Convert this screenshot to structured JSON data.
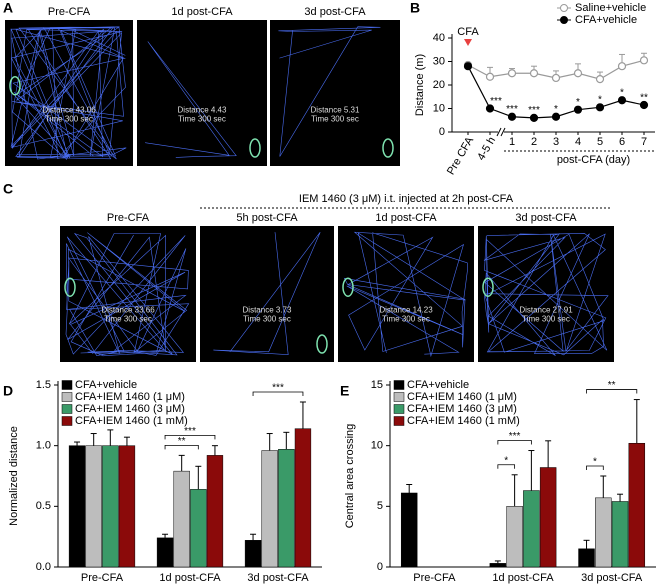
{
  "track_panels": [
    {
      "panel": "A",
      "images": [
        {
          "title": "Pre-CFA",
          "distance": "Distance 43.06",
          "time": "Time 300 sec"
        },
        {
          "title": "1d post-CFA",
          "distance": "Distance 4.43",
          "time": "Time 300 sec"
        },
        {
          "title": "3d post-CFA",
          "distance": "Distance 5.31",
          "time": "Time 300 sec"
        }
      ]
    },
    {
      "panel": "C",
      "header": "IEM 1460 (3 μM) i.t. injected at 2h post-CFA",
      "images": [
        {
          "title": "Pre-CFA",
          "distance": "Distance 33.66",
          "time": "Time 300 sec"
        },
        {
          "title": "5h post-CFA",
          "distance": "Distance 3.73",
          "time": "Time 300 sec"
        },
        {
          "title": "1d post-CFA",
          "distance": "Distance 14.23",
          "time": "Time 300 sec"
        },
        {
          "title": "3d post-CFA",
          "distance": "Distance 27.91",
          "time": "Time 300 sec"
        }
      ]
    }
  ],
  "chart_data": [
    {
      "type": "line",
      "panel": "B",
      "ylabel": "Distance (m)",
      "categories": [
        "Pre CFA",
        "4-5 h",
        "1",
        "2",
        "3",
        "4",
        "5",
        "6",
        "7"
      ],
      "x_group_label": "post-CFA (day)",
      "annotation": "CFA",
      "ylim": [
        0,
        40
      ],
      "yticks": [
        0,
        10,
        20,
        30,
        40
      ],
      "series": [
        {
          "name": "Saline+vehicle",
          "color": "#9a9a9a",
          "values": [
            28.5,
            23.5,
            25,
            25,
            23,
            25,
            22.5,
            28,
            30.5
          ],
          "errors": [
            1,
            4,
            2,
            3,
            3,
            4,
            3,
            5,
            3
          ]
        },
        {
          "name": "CFA+vehicle",
          "color": "#000000",
          "values": [
            28,
            10,
            6.5,
            6,
            6.5,
            9.5,
            10.5,
            13.5,
            11.5
          ],
          "errors": [
            1,
            1,
            1,
            1,
            1,
            1,
            1,
            1,
            1
          ]
        }
      ],
      "significance": [
        null,
        "***",
        "***",
        "***",
        "*",
        "*",
        "*",
        "*",
        "**"
      ],
      "legend": "upper right"
    },
    {
      "type": "bar",
      "panel": "D",
      "ylabel": "Normalized distance",
      "categories": [
        "Pre-CFA",
        "1d post-CFA",
        "3d post-CFA"
      ],
      "ylim": [
        0,
        1.5
      ],
      "yticks": [
        {
          "value": 0,
          "label": "0.0"
        },
        0.5,
        {
          "value": 1,
          "label": "1.0"
        },
        1.5
      ],
      "series": [
        {
          "name": "CFA+vehicle",
          "color": "#000000",
          "values": [
            1.0,
            0.24,
            0.22
          ],
          "errors": [
            0.03,
            0.03,
            0.05
          ]
        },
        {
          "name": "CFA+IEM 1460 (1 μM)",
          "color": "#bdbdbd",
          "values": [
            1.0,
            0.79,
            0.96
          ],
          "errors": [
            0.1,
            0.13,
            0.14
          ]
        },
        {
          "name": "CFA+IEM 1460 (3 μM)",
          "color": "#3a9a68",
          "values": [
            1.0,
            0.64,
            0.97
          ],
          "errors": [
            0.13,
            0.19,
            0.14
          ]
        },
        {
          "name": "CFA+IEM 1460 (1 mM)",
          "color": "#8b0a0a",
          "values": [
            1.0,
            0.92,
            1.14
          ],
          "errors": [
            0.07,
            0.08,
            0.22
          ]
        }
      ],
      "brackets": [
        {
          "category": 1,
          "from": 0,
          "to": 2,
          "label": "**"
        },
        {
          "category": 1,
          "from": 0,
          "to": 3,
          "label": "***"
        },
        {
          "category": 2,
          "from": 0,
          "to": 3,
          "label": "***"
        }
      ],
      "legend": "upper left"
    },
    {
      "type": "bar",
      "panel": "E",
      "ylabel": "Central area crossing",
      "categories": [
        "Pre-CFA",
        "1d post-CFA",
        "3d post-CFA"
      ],
      "ylim": [
        0,
        15
      ],
      "yticks": [
        0,
        5,
        10,
        15
      ],
      "series": [
        {
          "name": "CFA+vehicle",
          "color": "#000000",
          "values": [
            6.1,
            0.3,
            1.5
          ],
          "errors": [
            0.7,
            0.2,
            0.7
          ]
        },
        {
          "name": "CFA+IEM 1460 (1 μM)",
          "color": "#bdbdbd",
          "values": [
            null,
            5.0,
            5.7
          ],
          "errors": [
            null,
            2.6,
            1.8
          ]
        },
        {
          "name": "CFA+IEM 1460 (3 μM)",
          "color": "#3a9a68",
          "values": [
            null,
            6.3,
            5.4
          ],
          "errors": [
            null,
            3.3,
            0.6
          ]
        },
        {
          "name": "CFA+IEM 1460 (1 mM)",
          "color": "#8b0a0a",
          "values": [
            null,
            8.2,
            10.2
          ],
          "errors": [
            null,
            2.2,
            3.6
          ]
        }
      ],
      "brackets": [
        {
          "category": 1,
          "from": 0,
          "to": 1,
          "label": "*"
        },
        {
          "category": 1,
          "from": 0,
          "to": 2,
          "label": "***"
        },
        {
          "category": 2,
          "from": 0,
          "to": 1,
          "label": "*"
        },
        {
          "category": 2,
          "from": 0,
          "to": 3,
          "label": "**"
        }
      ],
      "legend": "upper left"
    }
  ]
}
